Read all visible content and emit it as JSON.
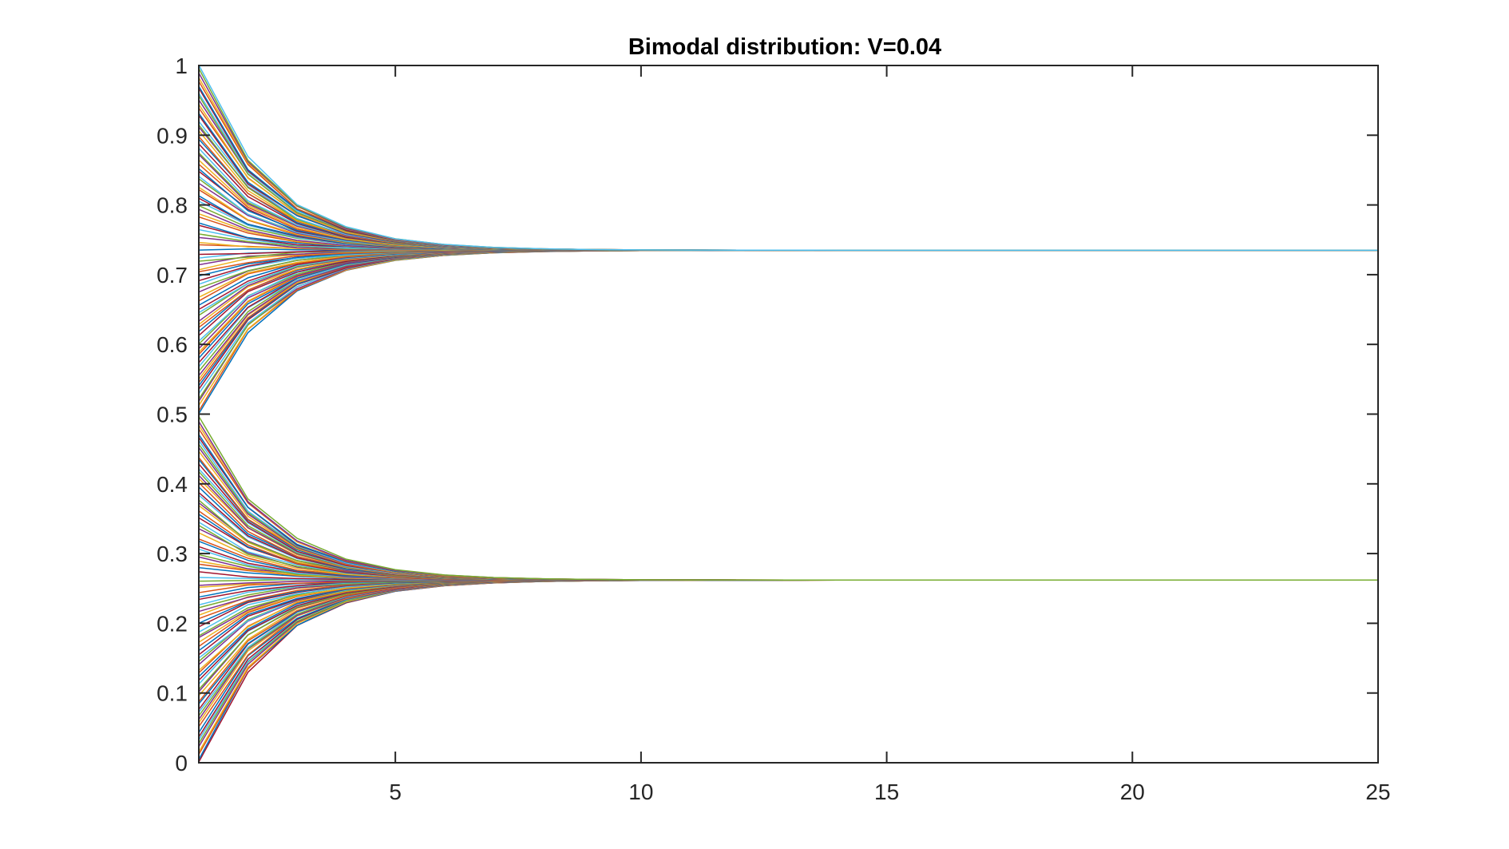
{
  "chart_data": {
    "type": "line",
    "title": "Bimodal distribution: V=0.04",
    "xlabel": "",
    "ylabel": "",
    "xlim": [
      1,
      25
    ],
    "ylim": [
      0,
      1
    ],
    "xticks": [
      5,
      10,
      15,
      20,
      25
    ],
    "yticks": [
      0,
      0.1,
      0.2,
      0.3,
      0.4,
      0.5,
      0.6,
      0.7,
      0.8,
      0.9,
      1
    ],
    "grid": false,
    "legend": "none",
    "x_start": 1,
    "x_end": 25,
    "clusters": [
      {
        "name": "",
        "consensus": 0.735,
        "rate": 0.5,
        "initial_min": 0.5,
        "initial_max": 1.0,
        "count": 90
      },
      {
        "name": "",
        "consensus": 0.262,
        "rate": 0.5,
        "initial_min": 0.0,
        "initial_max": 0.495,
        "count": 90
      }
    ],
    "series_colors": [
      "#0072BD",
      "#D95319",
      "#EDB120",
      "#7E2F8E",
      "#77AC30",
      "#4DBEEE",
      "#A2142F"
    ]
  }
}
